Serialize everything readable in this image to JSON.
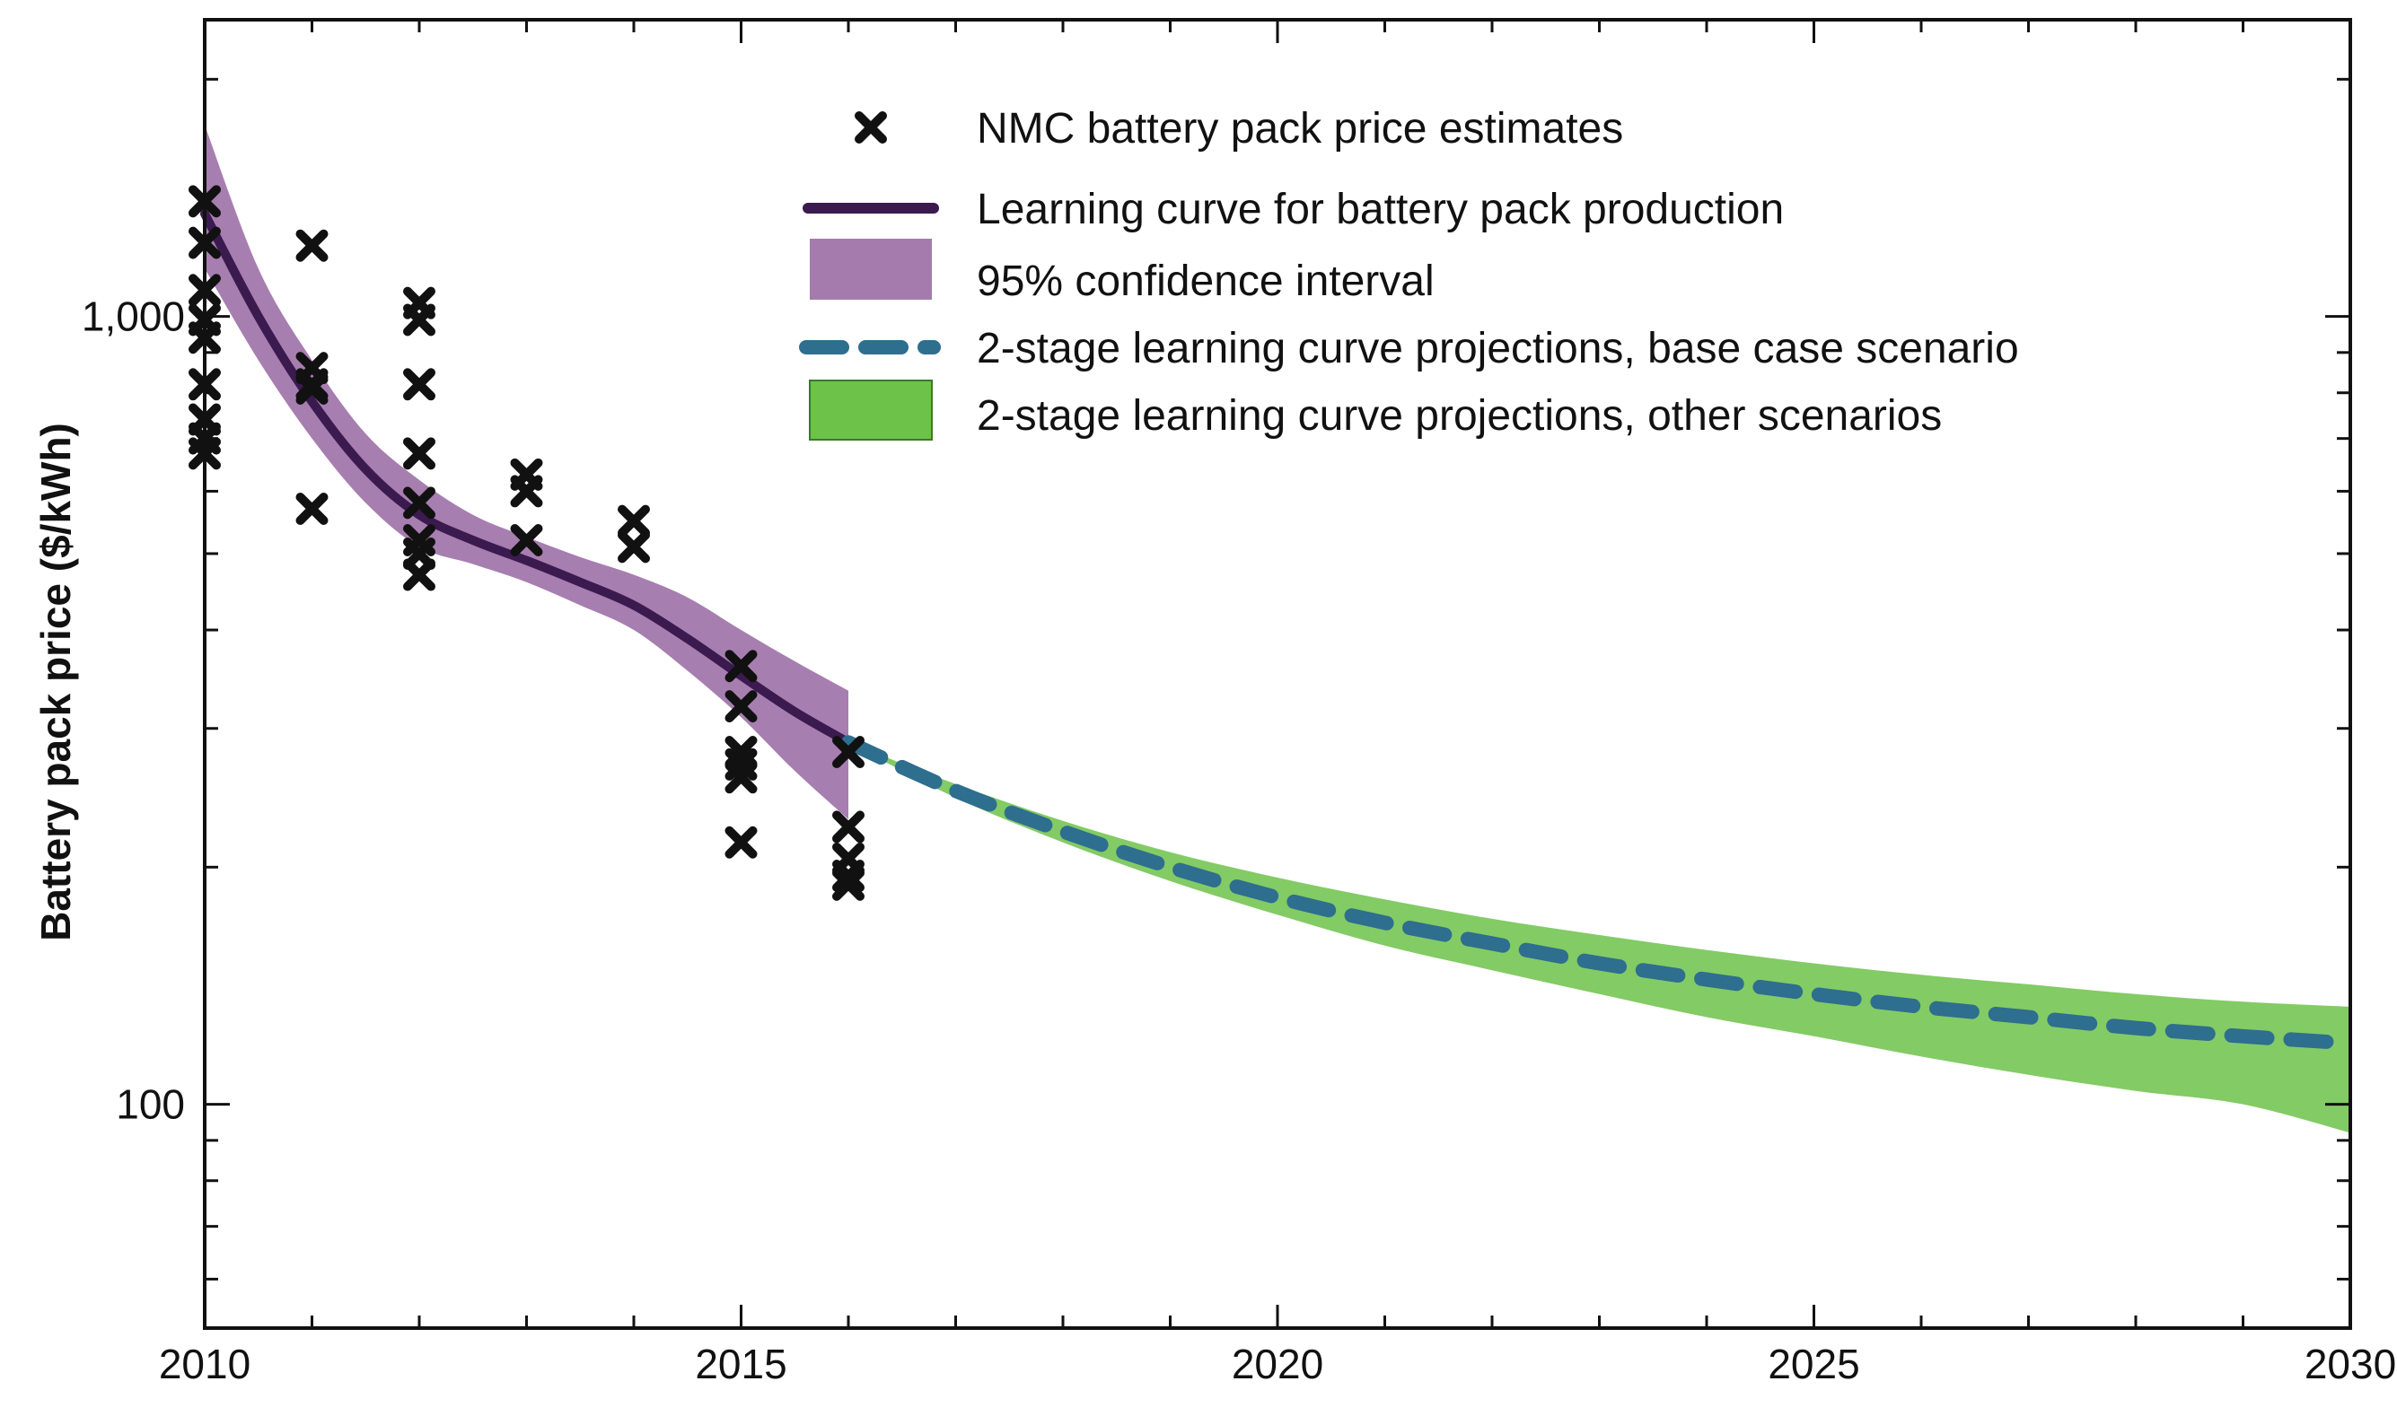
{
  "chart_data": {
    "type": "line",
    "title": "",
    "xlabel": "",
    "ylabel": "Battery pack price ($/kWh)",
    "y_scale": "log",
    "xlim": [
      2010,
      2030
    ],
    "ylim": [
      52,
      2380
    ],
    "x_ticks": [
      {
        "value": 2010,
        "label": "2010"
      },
      {
        "value": 2015,
        "label": "2015"
      },
      {
        "value": 2020,
        "label": "2020"
      },
      {
        "value": 2025,
        "label": "2025"
      },
      {
        "value": 2030,
        "label": "2030"
      }
    ],
    "y_ticks": [
      {
        "value": 100,
        "label": "100"
      },
      {
        "value": 1000,
        "label": "1,000"
      }
    ],
    "legend_position": "top-right",
    "legend": [
      {
        "key": "scatter",
        "label": "NMC battery pack price estimates"
      },
      {
        "key": "learning",
        "label": "Learning curve for battery pack production"
      },
      {
        "key": "ci",
        "label": "95% confidence interval"
      },
      {
        "key": "base",
        "label": "2-stage learning curve projections, base case scenario"
      },
      {
        "key": "other",
        "label": "2-stage learning curve projections, other scenarios"
      }
    ],
    "colors": {
      "learning": "#3b1a4f",
      "ci": "#8e5a9a",
      "base": "#2e6e8e",
      "other": "#6dc24a",
      "marker": "#111111"
    },
    "series": [
      {
        "name": "NMC battery pack price estimates",
        "kind": "scatter",
        "points": [
          [
            2010,
            1400
          ],
          [
            2010,
            1240
          ],
          [
            2010,
            1080
          ],
          [
            2010,
            990
          ],
          [
            2010,
            940
          ],
          [
            2010,
            820
          ],
          [
            2010,
            740
          ],
          [
            2010,
            700
          ],
          [
            2010,
            670
          ],
          [
            2011,
            1230
          ],
          [
            2011,
            860
          ],
          [
            2011,
            820
          ],
          [
            2011,
            810
          ],
          [
            2011,
            570
          ],
          [
            2012,
            1040
          ],
          [
            2012,
            990
          ],
          [
            2012,
            820
          ],
          [
            2012,
            670
          ],
          [
            2012,
            580
          ],
          [
            2012,
            520
          ],
          [
            2012,
            500
          ],
          [
            2012,
            470
          ],
          [
            2013,
            630
          ],
          [
            2013,
            600
          ],
          [
            2013,
            520
          ],
          [
            2014,
            550
          ],
          [
            2014,
            510
          ],
          [
            2015,
            360
          ],
          [
            2015,
            320
          ],
          [
            2015,
            280
          ],
          [
            2015,
            270
          ],
          [
            2015,
            260
          ],
          [
            2015,
            215
          ],
          [
            2016,
            280
          ],
          [
            2016,
            225
          ],
          [
            2016,
            205
          ],
          [
            2016,
            195
          ],
          [
            2016,
            190
          ]
        ]
      },
      {
        "name": "Learning curve for battery pack production",
        "kind": "line",
        "x": [
          2010,
          2010.5,
          2011,
          2011.5,
          2012,
          2012.5,
          2013,
          2013.5,
          2014,
          2014.5,
          2015,
          2015.5,
          2016
        ],
        "y": [
          1350,
          1000,
          780,
          640,
          560,
          520,
          490,
          460,
          430,
          390,
          350,
          315,
          288
        ]
      },
      {
        "name": "95% confidence interval",
        "kind": "band",
        "x": [
          2010,
          2010.5,
          2011,
          2011.5,
          2012,
          2012.5,
          2013,
          2013.5,
          2014,
          2014.5,
          2015,
          2015.5,
          2016
        ],
        "lower": [
          1150,
          880,
          700,
          580,
          510,
          485,
          460,
          430,
          400,
          355,
          310,
          265,
          230
        ],
        "upper": [
          1750,
          1150,
          880,
          710,
          620,
          560,
          525,
          495,
          470,
          440,
          400,
          365,
          335
        ]
      },
      {
        "name": "2-stage learning curve projections, base case scenario",
        "kind": "line",
        "x": [
          2016,
          2017,
          2018,
          2019,
          2020,
          2021,
          2022,
          2023,
          2024,
          2025,
          2026,
          2027,
          2028,
          2029,
          2029.8
        ],
        "y": [
          288,
          250,
          222,
          200,
          183,
          170,
          160,
          151,
          144,
          138,
          133,
          129,
          125,
          122,
          120
        ]
      },
      {
        "name": "2-stage learning curve projections, other scenarios",
        "kind": "band",
        "x": [
          2016,
          2017,
          2018,
          2019,
          2020,
          2021,
          2022,
          2023,
          2024,
          2025,
          2026,
          2027,
          2028,
          2029,
          2030
        ],
        "lower": [
          288,
          245,
          215,
          192,
          174,
          159,
          148,
          138,
          129,
          122,
          115,
          109,
          104,
          100,
          92
        ],
        "upper": [
          288,
          255,
          229,
          209,
          194,
          182,
          172,
          164,
          157,
          151,
          146,
          142,
          138,
          135,
          133
        ]
      }
    ]
  }
}
